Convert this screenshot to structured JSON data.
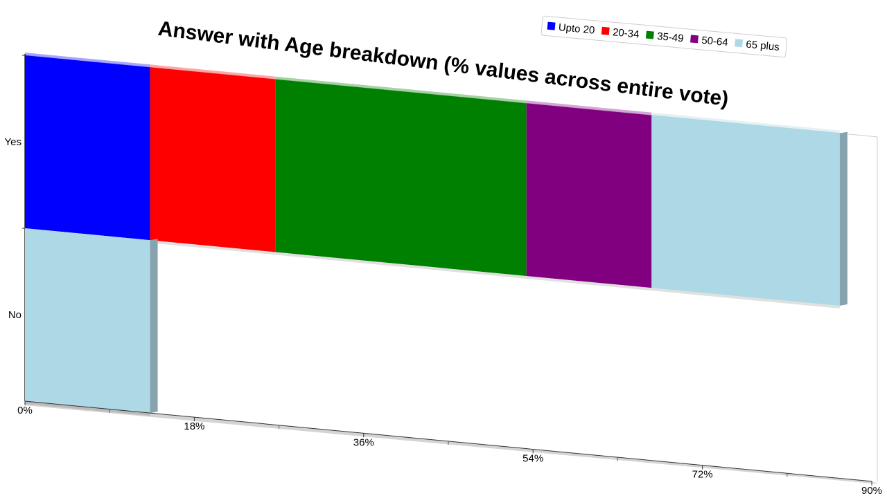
{
  "chart_data": {
    "type": "bar",
    "orientation": "horizontal",
    "stacked": true,
    "title": "Answer with Age breakdown (% values across entire vote)",
    "categories": [
      "Yes",
      "No"
    ],
    "series": [
      {
        "name": "Upto 20",
        "color": "#0000ff",
        "values": [
          13.3,
          0
        ]
      },
      {
        "name": "20-34",
        "color": "#ff0000",
        "values": [
          13.3,
          0
        ]
      },
      {
        "name": "35-49",
        "color": "#008000",
        "values": [
          26.7,
          0
        ]
      },
      {
        "name": "50-64",
        "color": "#800080",
        "values": [
          13.3,
          0
        ]
      },
      {
        "name": "65 plus",
        "color": "#add8e6",
        "values": [
          20.0,
          13.3
        ]
      }
    ],
    "x_ticks": [
      "0%",
      "18%",
      "36%",
      "54%",
      "72%",
      "90%"
    ],
    "xlim": [
      0,
      90
    ],
    "legend_position": "top-right",
    "grid": false
  }
}
